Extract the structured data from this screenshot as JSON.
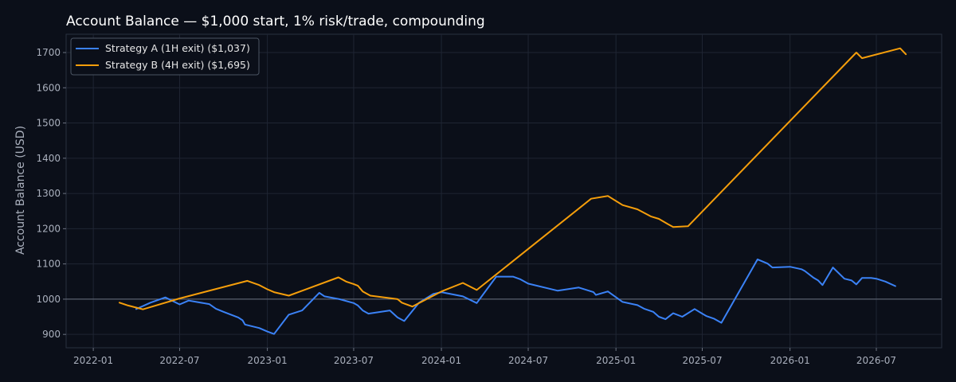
{
  "chart_data": {
    "type": "line",
    "title": "Account Balance — $1,000 start, 1% risk/trade, compounding",
    "xlabel": "",
    "ylabel": "Account Balance (USD)",
    "xlim": [
      "2021-11-05",
      "2026-11-15"
    ],
    "ylim": [
      862,
      1752
    ],
    "x_ticks": [
      "2022-01",
      "2022-07",
      "2023-01",
      "2023-07",
      "2024-01",
      "2024-07",
      "2025-01",
      "2025-07",
      "2026-01",
      "2026-07"
    ],
    "y_ticks": [
      900,
      1000,
      1100,
      1200,
      1300,
      1400,
      1500,
      1600,
      1700
    ],
    "reference_line": 1000,
    "grid": true,
    "legend_position": "top-left",
    "colors": {
      "background": "#0b0f19",
      "grid": "#1f2533",
      "strategy_a": "#3b82f6",
      "strategy_b": "#f59e0b"
    },
    "series": [
      {
        "name": "Strategy A (1H exit) ($1,037)",
        "color": "#3b82f6",
        "points": [
          [
            "2022-04-01",
            972
          ],
          [
            "2022-05-01",
            990
          ],
          [
            "2022-06-01",
            1005
          ],
          [
            "2022-07-01",
            985
          ],
          [
            "2022-07-20",
            996
          ],
          [
            "2022-09-01",
            986
          ],
          [
            "2022-09-15",
            973
          ],
          [
            "2022-10-01",
            964
          ],
          [
            "2022-11-01",
            948
          ],
          [
            "2022-11-10",
            940
          ],
          [
            "2022-11-15",
            928
          ],
          [
            "2022-12-15",
            918
          ],
          [
            "2023-01-01",
            908
          ],
          [
            "2023-01-15",
            901
          ],
          [
            "2023-02-15",
            956
          ],
          [
            "2023-03-15",
            968
          ],
          [
            "2023-04-20",
            1018
          ],
          [
            "2023-05-01",
            1008
          ],
          [
            "2023-06-01",
            1000
          ],
          [
            "2023-07-01",
            989
          ],
          [
            "2023-07-10",
            982
          ],
          [
            "2023-07-20",
            968
          ],
          [
            "2023-08-01",
            959
          ],
          [
            "2023-09-15",
            968
          ],
          [
            "2023-10-01",
            948
          ],
          [
            "2023-10-15",
            938
          ],
          [
            "2023-11-15",
            990
          ],
          [
            "2023-12-15",
            1015
          ],
          [
            "2024-01-01",
            1020
          ],
          [
            "2024-02-15",
            1008
          ],
          [
            "2024-03-15",
            989
          ],
          [
            "2024-04-25",
            1064
          ],
          [
            "2024-05-30",
            1064
          ],
          [
            "2024-06-15",
            1056
          ],
          [
            "2024-07-01",
            1044
          ],
          [
            "2024-09-01",
            1024
          ],
          [
            "2024-10-15",
            1033
          ],
          [
            "2024-11-15",
            1020
          ],
          [
            "2024-11-20",
            1012
          ],
          [
            "2024-12-15",
            1022
          ],
          [
            "2025-01-15",
            992
          ],
          [
            "2025-02-15",
            983
          ],
          [
            "2025-03-01",
            973
          ],
          [
            "2025-03-20",
            964
          ],
          [
            "2025-04-01",
            950
          ],
          [
            "2025-04-15",
            943
          ],
          [
            "2025-05-01",
            960
          ],
          [
            "2025-05-20",
            950
          ],
          [
            "2025-06-15",
            972
          ],
          [
            "2025-07-01",
            959
          ],
          [
            "2025-07-10",
            952
          ],
          [
            "2025-07-25",
            945
          ],
          [
            "2025-08-10",
            933
          ],
          [
            "2025-10-25",
            1113
          ],
          [
            "2025-11-15",
            1101
          ],
          [
            "2025-11-25",
            1090
          ],
          [
            "2026-01-01",
            1092
          ],
          [
            "2026-01-25",
            1085
          ],
          [
            "2026-02-01",
            1080
          ],
          [
            "2026-02-20",
            1060
          ],
          [
            "2026-03-01",
            1053
          ],
          [
            "2026-03-10",
            1040
          ],
          [
            "2026-04-01",
            1090
          ],
          [
            "2026-04-25",
            1058
          ],
          [
            "2026-05-10",
            1053
          ],
          [
            "2026-05-20",
            1042
          ],
          [
            "2026-06-01",
            1060
          ],
          [
            "2026-06-20",
            1060
          ],
          [
            "2026-07-01",
            1058
          ],
          [
            "2026-07-20",
            1050
          ],
          [
            "2026-08-10",
            1037
          ]
        ]
      },
      {
        "name": "Strategy B (4H exit) ($1,695)",
        "color": "#f59e0b",
        "points": [
          [
            "2022-02-25",
            990
          ],
          [
            "2022-03-15",
            982
          ],
          [
            "2022-04-01",
            976
          ],
          [
            "2022-04-15",
            971
          ],
          [
            "2022-07-01",
            1002
          ],
          [
            "2022-11-20",
            1052
          ],
          [
            "2022-12-15",
            1040
          ],
          [
            "2023-01-01",
            1028
          ],
          [
            "2023-01-15",
            1020
          ],
          [
            "2023-02-15",
            1010
          ],
          [
            "2023-05-30",
            1062
          ],
          [
            "2023-06-15",
            1050
          ],
          [
            "2023-07-01",
            1043
          ],
          [
            "2023-07-10",
            1038
          ],
          [
            "2023-07-20",
            1022
          ],
          [
            "2023-08-05",
            1010
          ],
          [
            "2023-09-15",
            1003
          ],
          [
            "2023-10-01",
            1000
          ],
          [
            "2023-10-10",
            990
          ],
          [
            "2023-11-01",
            979
          ],
          [
            "2024-01-01",
            1022
          ],
          [
            "2024-02-15",
            1046
          ],
          [
            "2024-03-15",
            1026
          ],
          [
            "2024-11-10",
            1285
          ],
          [
            "2024-12-15",
            1293
          ],
          [
            "2025-01-15",
            1267
          ],
          [
            "2025-02-15",
            1255
          ],
          [
            "2025-03-15",
            1235
          ],
          [
            "2025-04-01",
            1228
          ],
          [
            "2025-04-20",
            1213
          ],
          [
            "2025-05-01",
            1205
          ],
          [
            "2025-06-01",
            1207
          ],
          [
            "2026-05-20",
            1700
          ],
          [
            "2026-06-01",
            1684
          ],
          [
            "2026-08-20",
            1712
          ],
          [
            "2026-09-01",
            1695
          ]
        ]
      }
    ]
  }
}
